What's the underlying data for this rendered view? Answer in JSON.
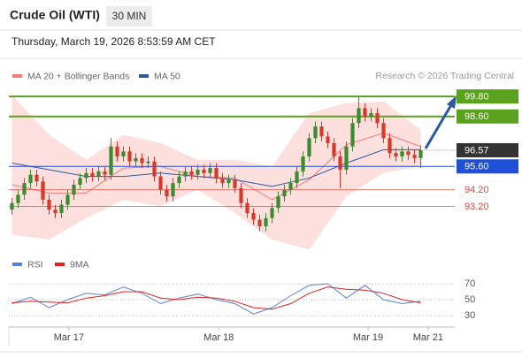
{
  "header": {
    "title": "Crude Oil (WTI)",
    "timeframe": "30 MIN",
    "datetime": "Thursday, March 19, 2026 8:53:59 AM CET",
    "source": "Research © 2026 Trading Central"
  },
  "chart_data": [
    {
      "type": "candlestick",
      "xlim": [
        -0.5,
        71.5
      ],
      "ylim": [
        90.2,
        100.55
      ],
      "xticks": [
        {
          "value": 9.2,
          "label": "Mar 17"
        },
        {
          "value": 33.4,
          "label": "Mar 18"
        },
        {
          "value": 57.5,
          "label": "Mar 19"
        },
        {
          "value": 67.2,
          "label": "Mar 21"
        }
      ],
      "up_color": "#3d8b2f",
      "down_color": "#d33a2c",
      "open": [
        93.0,
        93.4,
        93.9,
        94.6,
        95.1,
        94.7,
        93.6,
        93.0,
        92.8,
        93.3,
        93.9,
        94.5,
        94.9,
        95.2,
        95.0,
        95.3,
        95.1,
        96.8,
        96.2,
        96.5,
        95.9,
        96.1,
        95.8,
        95.9,
        95.0,
        94.2,
        93.8,
        94.6,
        95.0,
        95.3,
        95.1,
        95.4,
        95.2,
        95.5,
        94.9,
        94.6,
        94.8,
        94.3,
        93.4,
        92.8,
        92.4,
        92.0,
        92.5,
        93.1,
        93.8,
        94.2,
        94.6,
        95.3,
        96.2,
        97.3,
        98.0,
        97.4,
        97.0,
        96.2,
        95.4,
        96.8,
        98.2,
        99.1,
        98.6,
        98.8,
        98.2,
        97.3,
        96.4,
        96.2,
        96.5,
        96.3,
        96.1
      ],
      "high": [
        93.7,
        94.2,
        94.9,
        95.4,
        95.4,
        95.0,
        93.9,
        93.3,
        93.6,
        94.2,
        94.8,
        95.2,
        95.5,
        95.5,
        95.6,
        95.6,
        97.3,
        97.1,
        96.8,
        96.8,
        96.4,
        96.4,
        96.2,
        96.2,
        95.3,
        94.5,
        94.9,
        95.3,
        95.6,
        95.6,
        95.7,
        95.7,
        95.8,
        95.8,
        95.2,
        95.1,
        95.1,
        94.6,
        93.7,
        93.1,
        92.7,
        92.8,
        93.4,
        94.1,
        94.5,
        94.9,
        95.6,
        96.5,
        97.6,
        98.3,
        98.3,
        97.7,
        97.3,
        96.5,
        97.1,
        98.5,
        99.75,
        99.4,
        99.1,
        99.1,
        98.5,
        97.6,
        96.7,
        96.8,
        96.8,
        96.6,
        96.87
      ],
      "low": [
        92.7,
        93.1,
        93.6,
        94.3,
        94.4,
        93.3,
        92.7,
        92.5,
        92.5,
        93.0,
        93.6,
        94.2,
        94.6,
        94.7,
        94.7,
        94.8,
        94.8,
        95.9,
        95.9,
        95.6,
        95.6,
        95.5,
        95.5,
        94.7,
        93.9,
        93.5,
        93.5,
        94.3,
        94.7,
        94.8,
        94.8,
        94.9,
        94.9,
        94.6,
        94.3,
        94.3,
        94.0,
        93.1,
        92.5,
        92.1,
        91.7,
        91.7,
        92.2,
        92.8,
        93.5,
        93.9,
        94.3,
        95.0,
        95.9,
        97.0,
        97.1,
        96.7,
        95.9,
        94.3,
        95.1,
        96.5,
        97.9,
        98.3,
        98.3,
        97.9,
        97.0,
        96.1,
        95.9,
        95.9,
        96.0,
        95.8,
        95.5
      ],
      "close": [
        93.4,
        93.9,
        94.6,
        95.1,
        94.7,
        93.6,
        93.0,
        92.8,
        93.3,
        93.9,
        94.5,
        94.9,
        95.2,
        95.0,
        95.3,
        95.1,
        96.8,
        96.2,
        96.5,
        95.9,
        96.1,
        95.8,
        95.9,
        95.0,
        94.2,
        93.8,
        94.6,
        95.0,
        95.3,
        95.1,
        95.4,
        95.2,
        95.5,
        94.9,
        94.6,
        94.8,
        94.3,
        93.4,
        92.8,
        92.4,
        92.0,
        92.5,
        93.1,
        93.8,
        94.2,
        94.6,
        95.3,
        96.2,
        97.3,
        98.0,
        97.4,
        97.0,
        96.2,
        95.4,
        96.8,
        98.2,
        99.1,
        98.6,
        98.8,
        98.2,
        97.3,
        96.4,
        96.2,
        96.5,
        96.3,
        96.1,
        96.57
      ],
      "overlays": [
        {
          "name": "MA 20 + Bollinger Bands",
          "color": "#f07a78",
          "band_color": "#fdd9d8",
          "x": [
            0,
            6,
            12,
            18,
            24,
            30,
            36,
            42,
            48,
            54,
            60,
            66
          ],
          "values": [
            94.5,
            94.0,
            94.0,
            95.5,
            95.6,
            95.0,
            94.9,
            93.6,
            94.8,
            96.9,
            97.6,
            96.8
          ],
          "upper": [
            99.9,
            97.5,
            96.0,
            97.5,
            97.0,
            96.0,
            96.0,
            95.6,
            98.8,
            99.4,
            99.5,
            97.8
          ],
          "lower": [
            91.5,
            91.2,
            92.5,
            93.6,
            93.2,
            94.2,
            92.8,
            91.2,
            90.6,
            93.8,
            95.2,
            95.6
          ]
        },
        {
          "name": "MA 50",
          "color": "#2d5a9b",
          "x": [
            0,
            6,
            12,
            18,
            24,
            30,
            36,
            42,
            48,
            54,
            60,
            66
          ],
          "values": [
            95.8,
            95.4,
            95.0,
            95.0,
            95.2,
            95.0,
            94.8,
            94.4,
            94.9,
            95.8,
            96.6,
            96.6
          ]
        }
      ],
      "levels": [
        {
          "value": 99.8,
          "label": "99.80",
          "color": "#5aa11e",
          "style": "box"
        },
        {
          "value": 98.6,
          "label": "98.60",
          "color": "#5aa11e",
          "style": "box"
        },
        {
          "value": 95.6,
          "label": "95.60",
          "color": "#1f4fd6",
          "style": "box"
        },
        {
          "value": 94.2,
          "label": "94.20",
          "color": "#e0453a",
          "style": "text"
        },
        {
          "value": 93.2,
          "label": "93.20",
          "color": "#e0453a",
          "style": "text"
        }
      ],
      "last": {
        "value": 96.57,
        "label": "96.57",
        "color": "#333333"
      }
    },
    {
      "type": "line",
      "xlim": [
        -0.5,
        71.5
      ],
      "ylim": [
        25,
        75
      ],
      "yticks": [
        70,
        50,
        30
      ],
      "series": [
        {
          "name": "RSI",
          "color": "#5b7fd6",
          "x": [
            0,
            3,
            6,
            9,
            12,
            15,
            18,
            21,
            24,
            27,
            30,
            33,
            36,
            39,
            42,
            45,
            48,
            51,
            54,
            57,
            60,
            63,
            66
          ],
          "values": [
            45,
            53,
            40,
            50,
            58,
            56,
            66,
            58,
            45,
            52,
            57,
            50,
            45,
            32,
            40,
            55,
            68,
            70,
            52,
            68,
            50,
            45,
            48
          ]
        },
        {
          "name": "9MA",
          "color": "#e02020",
          "x": [
            0,
            3,
            6,
            9,
            12,
            15,
            18,
            21,
            24,
            27,
            30,
            33,
            36,
            39,
            42,
            45,
            48,
            51,
            54,
            57,
            60,
            63,
            66
          ],
          "values": [
            46,
            48,
            47,
            46,
            52,
            55,
            60,
            60,
            52,
            50,
            53,
            52,
            48,
            40,
            38,
            45,
            58,
            66,
            63,
            62,
            58,
            50,
            46
          ]
        }
      ]
    }
  ]
}
